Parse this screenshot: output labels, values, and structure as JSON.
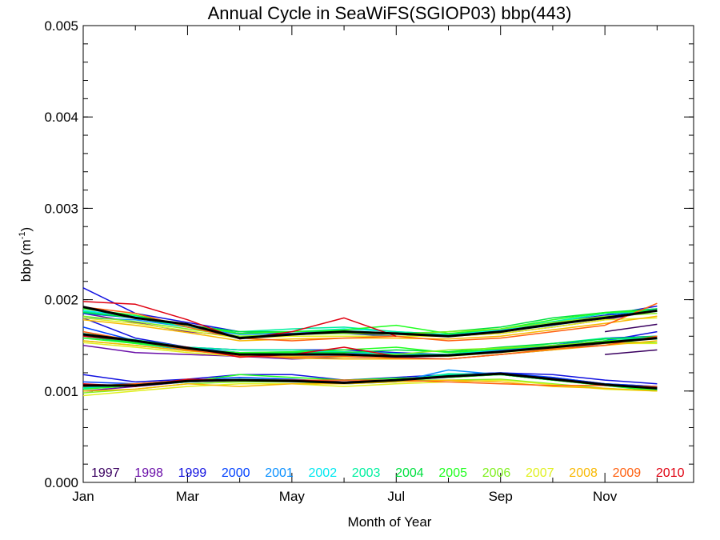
{
  "chart_data": {
    "type": "line",
    "title": "Annual Cycle in SeaWiFS(SGIOP03) bbp(443)",
    "xlabel": "Month of Year",
    "ylabel_main": "bbp (m",
    "ylabel_sup": "-1",
    "ylabel_close": ")",
    "xlim": [
      1,
      12.7
    ],
    "ylim": [
      0,
      0.005
    ],
    "x_ticks": [
      {
        "value": 1,
        "label": "Jan"
      },
      {
        "value": 3,
        "label": "Mar"
      },
      {
        "value": 5,
        "label": "May"
      },
      {
        "value": 7,
        "label": "Jul"
      },
      {
        "value": 9,
        "label": "Sep"
      },
      {
        "value": 11,
        "label": "Nov"
      }
    ],
    "y_ticks": [
      {
        "value": 0,
        "label": "0.000"
      },
      {
        "value": 0.001,
        "label": "0.001"
      },
      {
        "value": 0.002,
        "label": "0.002"
      },
      {
        "value": 0.003,
        "label": "0.003"
      },
      {
        "value": 0.004,
        "label": "0.004"
      },
      {
        "value": 0.005,
        "label": "0.005"
      }
    ],
    "grid": false,
    "legend_placement": "bottom inside",
    "x": [
      1,
      2,
      3,
      4,
      5,
      6,
      7,
      8,
      9,
      10,
      11,
      12
    ],
    "series": [
      {
        "name": "1997",
        "color": "#3a0060",
        "upper": [
          null,
          null,
          null,
          null,
          null,
          null,
          null,
          null,
          null,
          null,
          0.00165,
          0.00173
        ],
        "middle": [
          null,
          null,
          null,
          null,
          null,
          null,
          null,
          null,
          null,
          null,
          0.0014,
          0.00145
        ],
        "lower": [
          null,
          null,
          null,
          null,
          null,
          null,
          null,
          null,
          null,
          null,
          null,
          null
        ]
      },
      {
        "name": "1998",
        "color": "#6a0fa8",
        "upper": [
          0.00185,
          0.00175,
          0.00165,
          0.0016,
          0.0016,
          0.0016,
          0.0016,
          0.0016,
          0.00163,
          0.0017,
          0.00178,
          0.00188
        ],
        "middle": [
          0.0015,
          0.00142,
          0.0014,
          0.00138,
          0.00135,
          0.00137,
          0.00137,
          0.00135,
          0.0014,
          0.00145,
          0.00152,
          0.00158
        ],
        "lower": [
          0.001,
          0.00105,
          0.0011,
          0.00112,
          0.0011,
          0.0011,
          0.00112,
          0.00115,
          0.00118,
          0.00115,
          0.00108,
          0.00105
        ]
      },
      {
        "name": "1999",
        "color": "#1010e0",
        "upper": [
          0.00213,
          0.00185,
          0.00175,
          0.00165,
          0.00163,
          0.00163,
          0.0016,
          0.0016,
          0.00165,
          0.00175,
          0.00183,
          0.00193
        ],
        "middle": [
          0.0018,
          0.00158,
          0.00148,
          0.00145,
          0.00145,
          0.00145,
          0.00142,
          0.0014,
          0.00145,
          0.0015,
          0.00155,
          0.00165
        ],
        "lower": [
          0.00118,
          0.0011,
          0.00113,
          0.00118,
          0.00118,
          0.00112,
          0.00115,
          0.00118,
          0.0012,
          0.00118,
          0.00112,
          0.00108
        ]
      },
      {
        "name": "2000",
        "color": "#0040ff",
        "upper": [
          0.00185,
          0.0018,
          0.00172,
          0.00163,
          0.00165,
          0.00165,
          0.00163,
          0.00162,
          0.00166,
          0.00173,
          0.00182,
          0.0019
        ],
        "middle": [
          0.0017,
          0.00155,
          0.00148,
          0.00142,
          0.00142,
          0.0014,
          0.00138,
          0.0014,
          0.00144,
          0.0015,
          0.00158,
          0.0016
        ],
        "lower": [
          0.0011,
          0.00108,
          0.00112,
          0.00115,
          0.00113,
          0.0011,
          0.00112,
          0.00118,
          0.0012,
          0.00115,
          0.00108,
          0.00105
        ]
      },
      {
        "name": "2001",
        "color": "#0a90ff",
        "upper": [
          0.0018,
          0.00178,
          0.0017,
          0.00162,
          0.00163,
          0.00165,
          0.00162,
          0.0016,
          0.00165,
          0.00172,
          0.0018,
          0.00188
        ],
        "middle": [
          0.0016,
          0.00152,
          0.00145,
          0.0014,
          0.0014,
          0.00142,
          0.0014,
          0.00138,
          0.00145,
          0.0015,
          0.00155,
          0.00158
        ],
        "lower": [
          0.00105,
          0.00107,
          0.0011,
          0.00112,
          0.00112,
          0.00108,
          0.0011,
          0.00123,
          0.00118,
          0.00112,
          0.00108,
          0.00103
        ]
      },
      {
        "name": "2002",
        "color": "#00e8f0",
        "upper": [
          0.00188,
          0.00182,
          0.00172,
          0.00165,
          0.00165,
          0.00168,
          0.00165,
          0.00162,
          0.00167,
          0.00175,
          0.00185,
          0.0019
        ],
        "middle": [
          0.00162,
          0.00155,
          0.00147,
          0.00142,
          0.00143,
          0.00143,
          0.0014,
          0.0014,
          0.00146,
          0.00152,
          0.00157,
          0.00158
        ],
        "lower": [
          0.00103,
          0.00106,
          0.0011,
          0.00112,
          0.00111,
          0.00108,
          0.0011,
          0.00118,
          0.00118,
          0.00112,
          0.00107,
          0.00102
        ]
      },
      {
        "name": "2003",
        "color": "#00f0a0",
        "upper": [
          0.00187,
          0.0018,
          0.0017,
          0.00165,
          0.00168,
          0.0017,
          0.00165,
          0.00162,
          0.00168,
          0.00176,
          0.00185,
          0.00187
        ],
        "middle": [
          0.00163,
          0.00156,
          0.00148,
          0.00145,
          0.00145,
          0.00143,
          0.00141,
          0.0014,
          0.00147,
          0.00152,
          0.00158,
          0.00157
        ],
        "lower": [
          0.00104,
          0.00107,
          0.00111,
          0.00113,
          0.00112,
          0.00109,
          0.00111,
          0.00119,
          0.00118,
          0.00113,
          0.00106,
          0.00101
        ]
      },
      {
        "name": "2004",
        "color": "#00e040",
        "upper": [
          0.00186,
          0.0018,
          0.00172,
          0.00165,
          0.00165,
          0.00166,
          0.00163,
          0.00165,
          0.0017,
          0.0018,
          0.00186,
          0.0019
        ],
        "middle": [
          0.0016,
          0.00153,
          0.00146,
          0.00141,
          0.00142,
          0.00142,
          0.00145,
          0.00143,
          0.00148,
          0.00152,
          0.00157,
          0.0016
        ],
        "lower": [
          0.00105,
          0.00108,
          0.00111,
          0.00112,
          0.00112,
          0.0011,
          0.00112,
          0.00117,
          0.00118,
          0.00112,
          0.00106,
          0.001
        ]
      },
      {
        "name": "2005",
        "color": "#20ff20",
        "upper": [
          0.0019,
          0.00183,
          0.00172,
          0.00163,
          0.00165,
          0.00167,
          0.00172,
          0.00163,
          0.00168,
          0.00178,
          0.00186,
          0.00188
        ],
        "middle": [
          0.00158,
          0.00152,
          0.00146,
          0.00142,
          0.00143,
          0.00145,
          0.00148,
          0.00142,
          0.00146,
          0.0015,
          0.00155,
          0.00157
        ],
        "lower": [
          0.00102,
          0.00106,
          0.0011,
          0.00118,
          0.00115,
          0.00112,
          0.00114,
          0.00115,
          0.00118,
          0.00112,
          0.00106,
          0.00101
        ]
      },
      {
        "name": "2006",
        "color": "#80f020",
        "upper": [
          0.00182,
          0.00176,
          0.00168,
          0.0016,
          0.00162,
          0.00163,
          0.00162,
          0.00165,
          0.00168,
          0.00175,
          0.00182,
          0.00185
        ],
        "middle": [
          0.00155,
          0.0015,
          0.00144,
          0.0014,
          0.0014,
          0.0014,
          0.0014,
          0.00145,
          0.00147,
          0.0015,
          0.00154,
          0.00153
        ],
        "lower": [
          0.00098,
          0.00102,
          0.00108,
          0.0011,
          0.0011,
          0.00108,
          0.00112,
          0.00112,
          0.00113,
          0.00108,
          0.00103,
          0.001
        ]
      },
      {
        "name": "2007",
        "color": "#e0f020",
        "upper": [
          0.0018,
          0.00174,
          0.00166,
          0.00158,
          0.0016,
          0.0016,
          0.0016,
          0.0016,
          0.00163,
          0.0017,
          0.00178,
          0.0018
        ],
        "middle": [
          0.00153,
          0.00148,
          0.00142,
          0.00138,
          0.00138,
          0.00137,
          0.00138,
          0.00138,
          0.00142,
          0.00147,
          0.00152,
          0.00152
        ],
        "lower": [
          0.00095,
          0.001,
          0.00105,
          0.00108,
          0.00108,
          0.00105,
          0.00108,
          0.0011,
          0.00112,
          0.00107,
          0.00102,
          0.001
        ]
      },
      {
        "name": "2008",
        "color": "#f8b800",
        "upper": [
          0.00178,
          0.00172,
          0.00164,
          0.00155,
          0.00157,
          0.00158,
          0.00158,
          0.00157,
          0.0016,
          0.00167,
          0.00174,
          0.00182
        ],
        "middle": [
          0.00155,
          0.0015,
          0.00144,
          0.0014,
          0.00136,
          0.00135,
          0.00135,
          0.00135,
          0.0014,
          0.00145,
          0.0015,
          0.00155
        ],
        "lower": [
          0.001,
          0.00102,
          0.00108,
          0.00105,
          0.00108,
          0.00108,
          0.0011,
          0.00112,
          0.0011,
          0.00105,
          0.00103,
          0.001
        ]
      },
      {
        "name": "2009",
        "color": "#ff6010",
        "upper": [
          0.00192,
          0.00185,
          0.0017,
          0.00158,
          0.00155,
          0.00158,
          0.0016,
          0.00155,
          0.00158,
          0.00165,
          0.00172,
          0.00196
        ],
        "middle": [
          0.00165,
          0.00155,
          0.00145,
          0.00138,
          0.00137,
          0.00138,
          0.00136,
          0.00135,
          0.0014,
          0.00146,
          0.0015,
          0.0016
        ],
        "lower": [
          0.00105,
          0.00108,
          0.00112,
          0.00112,
          0.00112,
          0.00112,
          0.00112,
          0.0011,
          0.00108,
          0.00106,
          0.00106,
          0.00105
        ]
      },
      {
        "name": "2010",
        "color": "#e00010",
        "upper": [
          0.00198,
          0.00195,
          0.00178,
          0.00157,
          0.00165,
          0.0018,
          0.0016,
          null,
          null,
          null,
          null,
          null
        ],
        "middle": [
          0.0016,
          0.00155,
          0.00148,
          0.00137,
          0.0014,
          0.00148,
          0.00138,
          null,
          null,
          null,
          null,
          null
        ],
        "lower": [
          0.00108,
          0.00105,
          0.00113,
          0.00112,
          0.00112,
          0.0011,
          0.00112,
          null,
          null,
          null,
          null,
          null
        ]
      },
      {
        "name": "",
        "color": "#000000",
        "width": 3,
        "upper": [
          0.00192,
          0.0018,
          0.00173,
          0.00158,
          0.00162,
          0.00165,
          0.00163,
          0.0016,
          0.00165,
          0.00173,
          0.0018,
          0.00188
        ],
        "middle": [
          0.00162,
          0.00155,
          0.00147,
          0.0014,
          0.0014,
          0.0014,
          0.00138,
          0.00139,
          0.00143,
          0.00148,
          0.00153,
          0.00158
        ],
        "lower": [
          0.00106,
          0.00106,
          0.00111,
          0.00112,
          0.00111,
          0.00109,
          0.00112,
          0.00116,
          0.00119,
          0.00113,
          0.00107,
          0.00103
        ]
      }
    ]
  }
}
